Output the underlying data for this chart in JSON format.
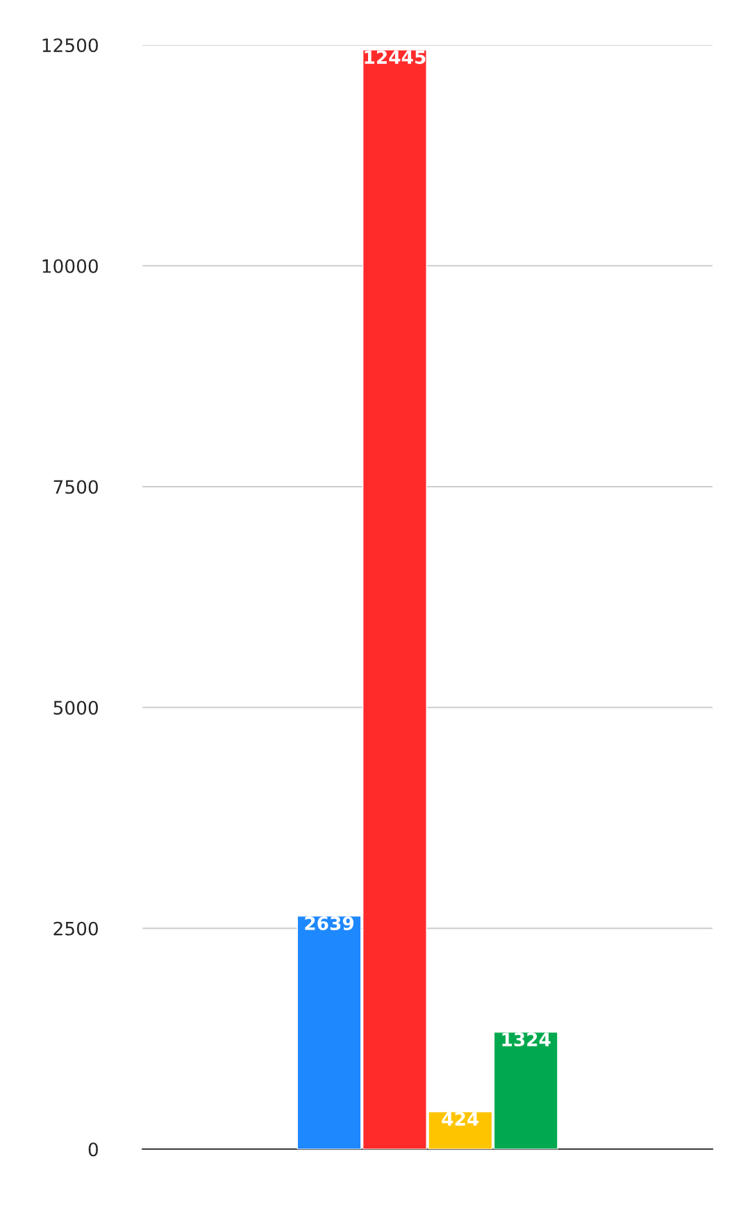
{
  "chart_data": {
    "type": "bar",
    "categories": [
      null
    ],
    "series": [
      {
        "color": "#1e88ff",
        "values": [
          2639
        ]
      },
      {
        "color": "#ff2b2b",
        "values": [
          12445
        ]
      },
      {
        "color": "#ffc400",
        "values": [
          424
        ]
      },
      {
        "color": "#00a94f",
        "values": [
          1324
        ]
      }
    ],
    "ylim": [
      0,
      12500
    ],
    "yticks": [
      0,
      2500,
      5000,
      7500,
      10000,
      12500
    ],
    "grid": "y",
    "data_labels": true
  }
}
